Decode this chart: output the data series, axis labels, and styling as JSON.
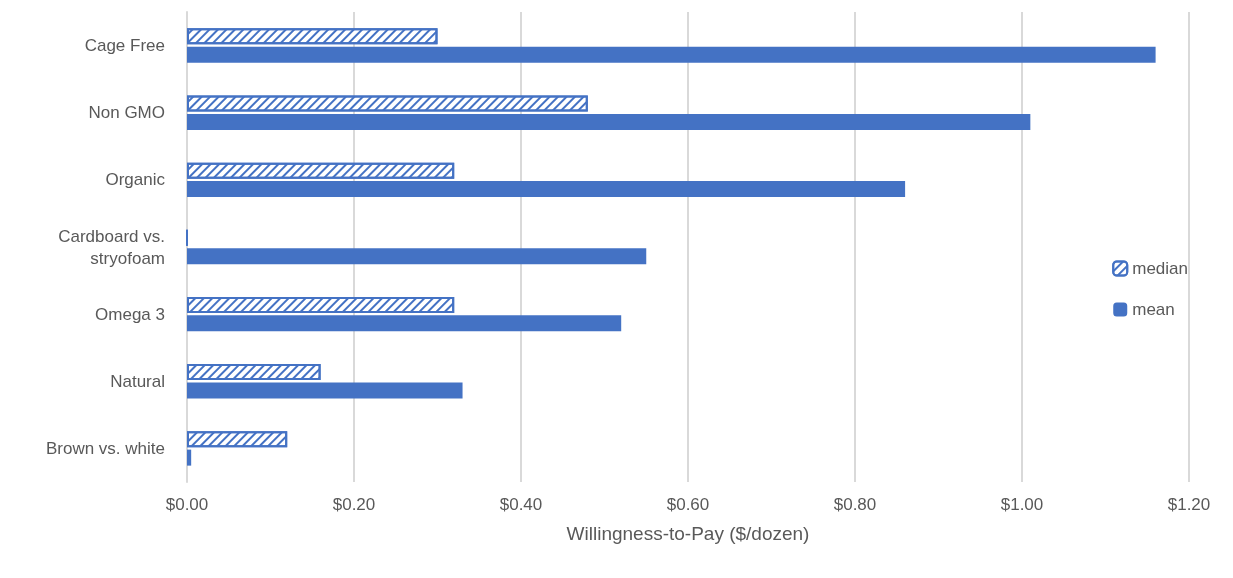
{
  "chart_data": {
    "type": "bar",
    "orientation": "horizontal",
    "xlabel": "Willingness-to-Pay ($/dozen)",
    "categories": [
      "Cage Free",
      "Non GMO",
      "Organic",
      "Cardboard vs.\nstryofoam",
      "Omega 3",
      "Natural",
      "Brown vs. white"
    ],
    "series": [
      {
        "name": "median",
        "color": "#4472c4",
        "values": [
          0.3,
          0.48,
          0.32,
          0,
          0.32,
          0.16,
          0.12
        ]
      },
      {
        "name": "mean",
        "color": "#4472c4",
        "values": [
          1.16,
          1.01,
          0.86,
          0.55,
          0.52,
          0.33,
          0.005
        ]
      }
    ],
    "xlim": [
      0,
      1.2
    ],
    "xticks": [
      {
        "value": 0,
        "label": "$0.00"
      },
      {
        "value": 0.2,
        "label": "$0.20"
      },
      {
        "value": 0.4,
        "label": "$0.40"
      },
      {
        "value": 0.6,
        "label": "$0.60"
      },
      {
        "value": 0.8,
        "label": "$0.80"
      },
      {
        "value": 1.0,
        "label": "$1.00"
      },
      {
        "value": 1.2,
        "label": "$1.20"
      }
    ],
    "grid": "x",
    "legend": "right"
  }
}
